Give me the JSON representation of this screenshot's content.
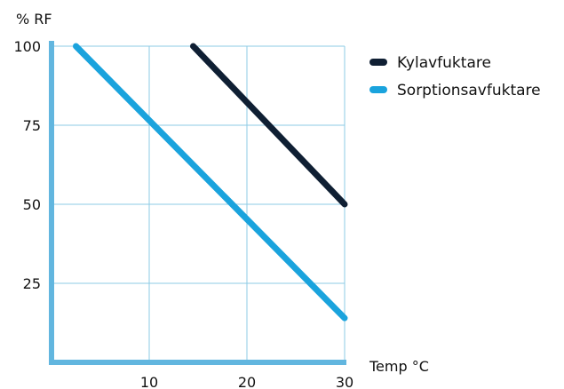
{
  "chart_data": {
    "type": "line",
    "title": "",
    "ylabel": "% RF",
    "xlabel": "Temp °C",
    "xlim": [
      0,
      30
    ],
    "ylim": [
      0,
      100
    ],
    "x_ticks": [
      10,
      20,
      30
    ],
    "y_ticks": [
      25,
      50,
      75,
      100
    ],
    "grid": true,
    "legend_position": "top-right",
    "grid_color": "#8ccbe6",
    "axis_color": "#62b6df",
    "series": [
      {
        "name": "Kylavfuktare",
        "color": "#0f1f33",
        "x": [
          14.5,
          30
        ],
        "y": [
          100,
          50
        ]
      },
      {
        "name": "Sorptionsavfuktare",
        "color": "#1aa3dd",
        "x": [
          2.5,
          30
        ],
        "y": [
          100,
          14
        ]
      }
    ]
  }
}
